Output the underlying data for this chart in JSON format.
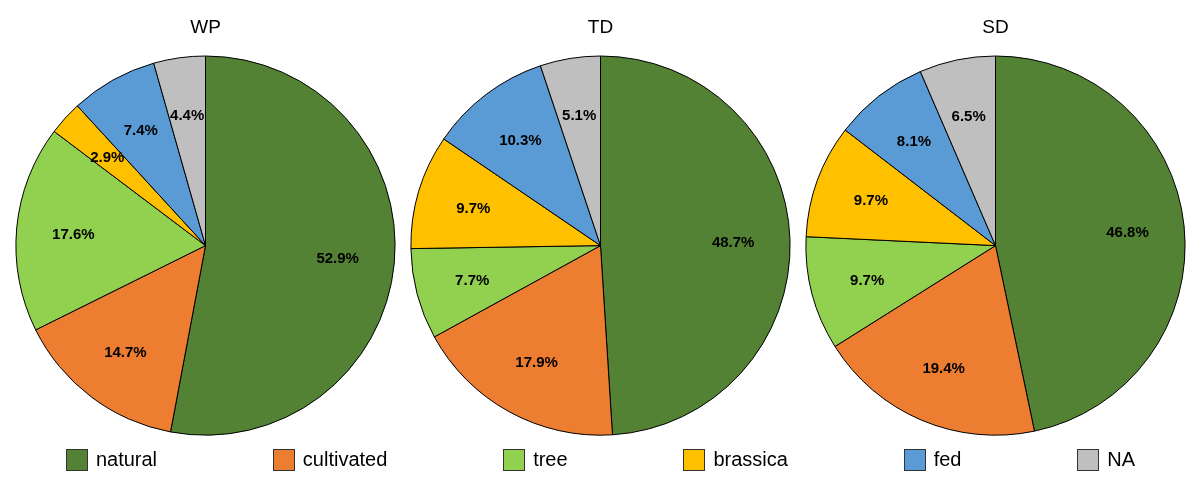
{
  "chart_data": [
    {
      "type": "pie",
      "title": "WP",
      "categories": [
        "natural",
        "cultivated",
        "tree",
        "brassica",
        "fed",
        "NA"
      ],
      "values": [
        52.9,
        14.7,
        17.6,
        2.9,
        7.4,
        4.4
      ],
      "value_labels": [
        "52.9%",
        "14.7%",
        "17.6%",
        "2.9%",
        "7.4%",
        "4.4%"
      ],
      "colors": [
        "#548235",
        "#ed7d31",
        "#92d050",
        "#ffc000",
        "#5b9bd5",
        "#bfbfbf"
      ],
      "legend": "bottom"
    },
    {
      "type": "pie",
      "title": "TD",
      "categories": [
        null,
        null,
        null,
        null,
        null,
        null
      ],
      "values": [
        48.7,
        17.9,
        7.7,
        9.7,
        10.3,
        5.1
      ],
      "value_labels": [
        "48.7%",
        "17.9%",
        "7.7%",
        "9.7%",
        "10.3%",
        "5.1%"
      ],
      "colors": [
        "#548235",
        "#ed7d31",
        "#92d050",
        "#ffc000",
        "#5b9bd5",
        "#bfbfbf"
      ]
    },
    {
      "type": "pie",
      "title": "SD",
      "categories": [
        null,
        null,
        null,
        null,
        null,
        null
      ],
      "values": [
        46.8,
        19.4,
        9.7,
        9.7,
        8.1,
        6.5
      ],
      "value_labels": [
        "46.8%",
        "19.4%",
        "9.7%",
        "9.7%",
        "8.1%",
        "6.5%"
      ],
      "colors": [
        "#548235",
        "#ed7d31",
        "#92d050",
        "#ffc000",
        "#5b9bd5",
        "#bfbfbf"
      ]
    }
  ]
}
